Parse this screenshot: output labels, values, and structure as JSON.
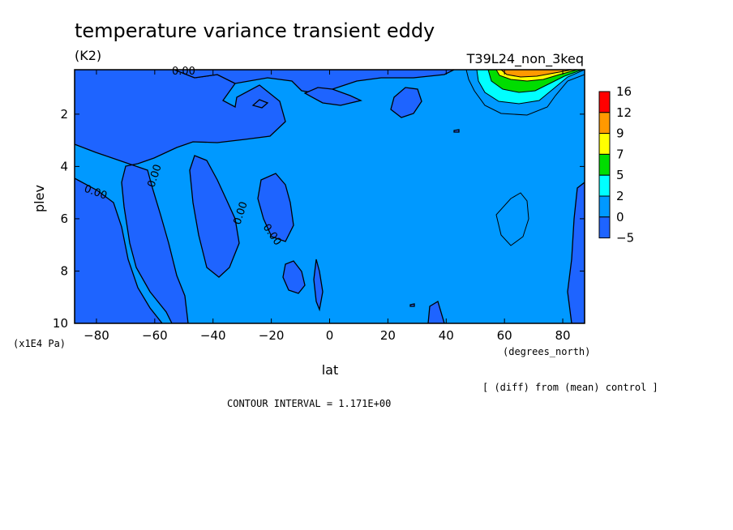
{
  "chart_data": {
    "type": "heatmap",
    "title": "temperature variance transient eddy",
    "units": "(K2)",
    "run_label": "T39L24_non_3keq",
    "xlabel": "lat",
    "x_units": "(degrees_north)",
    "ylabel": "plev",
    "y_units": "(x1E4 Pa)",
    "x_ticks": [
      "-80",
      "-60",
      "-40",
      "-20",
      "0",
      "20",
      "40",
      "60",
      "80"
    ],
    "x_tick_values": [
      -80,
      -60,
      -40,
      -20,
      0,
      20,
      40,
      60,
      80
    ],
    "y_ticks": [
      "2",
      "4",
      "6",
      "8",
      "10"
    ],
    "y_tick_values": [
      2,
      4,
      6,
      8,
      10
    ],
    "xlim": [
      -87.5,
      87.5
    ],
    "ylim": [
      10,
      0.3
    ],
    "contour_labels": [
      "0.00",
      "0.00",
      "0.00",
      "0.00",
      "0.00"
    ],
    "colorbar": {
      "levels": [
        "16",
        "12",
        "9",
        "7",
        "5",
        "2",
        "0",
        "-5"
      ],
      "colors": [
        "#ff0000",
        "#ff9900",
        "#ffff00",
        "#00dd00",
        "#00ffff",
        "#0099ff",
        "#1e64ff"
      ]
    },
    "note": "[ (diff) from (mean) control ]",
    "contour_interval": "CONTOUR INTERVAL = 1.171E+00"
  }
}
